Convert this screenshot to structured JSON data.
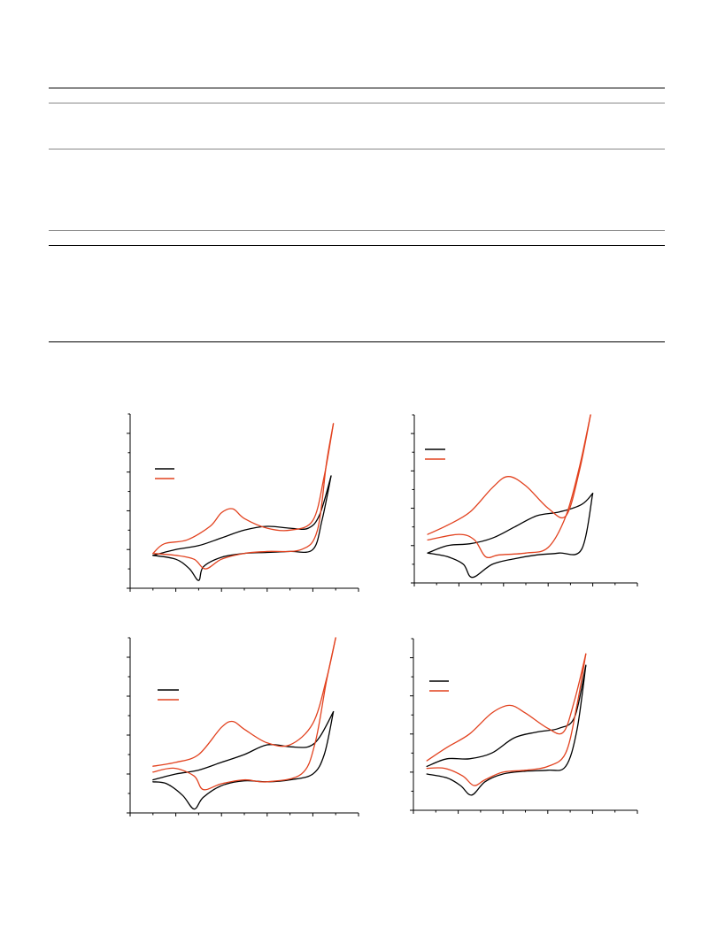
{
  "page": {
    "tables": [
      {
        "name": "table-1",
        "rules": [
          "top",
          "header",
          "bottom"
        ]
      },
      {
        "name": "table-2",
        "rules": [
          "top",
          "header",
          "bottom"
        ]
      }
    ]
  },
  "chart_data": [
    {
      "type": "line",
      "panel": "top-left",
      "title": "",
      "xlabel": "",
      "ylabel": "",
      "legend": {
        "placement": "top-left",
        "entries": [
          {
            "color": "#000000"
          },
          {
            "color": "#e2421f"
          }
        ]
      },
      "xlim": [
        0,
        10
      ],
      "ylim": [
        0,
        9
      ],
      "x_ticks": 10,
      "y_ticks": 9,
      "series": [
        {
          "color": "#000000",
          "forward": [
            [
              1,
              1.7
            ],
            [
              2,
              2.0
            ],
            [
              3,
              2.2
            ],
            [
              4,
              2.6
            ],
            [
              5,
              3.0
            ],
            [
              6,
              3.2
            ],
            [
              7,
              3.1
            ],
            [
              7.8,
              3.1
            ],
            [
              8.3,
              3.8
            ],
            [
              8.8,
              5.8
            ]
          ],
          "reverse": [
            [
              8.8,
              5.8
            ],
            [
              8.4,
              3.5
            ],
            [
              8,
              2.0
            ],
            [
              7,
              1.9
            ],
            [
              6,
              1.85
            ],
            [
              5,
              1.8
            ],
            [
              4,
              1.6
            ],
            [
              3.2,
              1.1
            ],
            [
              3,
              0.4
            ],
            [
              2.6,
              1.0
            ],
            [
              2,
              1.5
            ],
            [
              1,
              1.7
            ]
          ]
        },
        {
          "color": "#e2421f",
          "forward": [
            [
              1,
              1.8
            ],
            [
              1.5,
              2.3
            ],
            [
              2.5,
              2.5
            ],
            [
              3.5,
              3.2
            ],
            [
              4,
              3.9
            ],
            [
              4.5,
              4.1
            ],
            [
              5,
              3.6
            ],
            [
              6,
              3.1
            ],
            [
              7,
              3.0
            ],
            [
              8,
              3.5
            ],
            [
              8.5,
              5.8
            ],
            [
              8.9,
              8.5
            ]
          ],
          "reverse": [
            [
              8.9,
              8.5
            ],
            [
              8.6,
              6.5
            ],
            [
              8.2,
              3.0
            ],
            [
              7.5,
              2.0
            ],
            [
              6,
              1.9
            ],
            [
              5,
              1.8
            ],
            [
              4,
              1.5
            ],
            [
              3.3,
              1.0
            ],
            [
              2.8,
              1.5
            ],
            [
              2,
              1.7
            ],
            [
              1,
              1.8
            ]
          ]
        }
      ]
    },
    {
      "type": "line",
      "panel": "top-right",
      "title": "",
      "xlabel": "",
      "ylabel": "",
      "legend": {
        "placement": "top-left",
        "entries": [
          {
            "color": "#000000"
          },
          {
            "color": "#e2421f"
          }
        ]
      },
      "xlim": [
        0,
        10
      ],
      "ylim": [
        0,
        9
      ],
      "x_ticks": 10,
      "y_ticks": 9,
      "series": [
        {
          "color": "#000000",
          "forward": [
            [
              0.6,
              1.6
            ],
            [
              1.5,
              2.0
            ],
            [
              2.5,
              2.1
            ],
            [
              3.5,
              2.4
            ],
            [
              4.5,
              3.0
            ],
            [
              5.5,
              3.6
            ],
            [
              6.5,
              3.8
            ],
            [
              7.5,
              4.2
            ],
            [
              8,
              4.8
            ]
          ],
          "reverse": [
            [
              8,
              4.8
            ],
            [
              7.5,
              1.8
            ],
            [
              6.5,
              1.6
            ],
            [
              5.5,
              1.5
            ],
            [
              4.5,
              1.3
            ],
            [
              3.5,
              1.0
            ],
            [
              2.6,
              0.3
            ],
            [
              2.2,
              1.0
            ],
            [
              1.5,
              1.4
            ],
            [
              0.6,
              1.6
            ]
          ]
        },
        {
          "color": "#e2421f",
          "forward": [
            [
              0.6,
              2.6
            ],
            [
              1.5,
              3.1
            ],
            [
              2.5,
              3.8
            ],
            [
              3.5,
              5.1
            ],
            [
              4.2,
              5.7
            ],
            [
              5,
              5.2
            ],
            [
              6,
              4.0
            ],
            [
              6.8,
              3.6
            ],
            [
              7.4,
              6.0
            ],
            [
              7.9,
              9.0
            ]
          ],
          "reverse": [
            [
              7.9,
              9.0
            ],
            [
              7.4,
              6.2
            ],
            [
              6.8,
              3.6
            ],
            [
              6,
              1.9
            ],
            [
              5,
              1.6
            ],
            [
              3.8,
              1.5
            ],
            [
              3.2,
              1.4
            ],
            [
              2.7,
              2.3
            ],
            [
              2,
              2.6
            ],
            [
              0.6,
              2.3
            ]
          ]
        }
      ]
    },
    {
      "type": "line",
      "panel": "bottom-left",
      "title": "",
      "xlabel": "",
      "ylabel": "",
      "legend": {
        "placement": "top-left",
        "entries": [
          {
            "color": "#000000"
          },
          {
            "color": "#e2421f"
          }
        ]
      },
      "xlim": [
        0,
        10
      ],
      "ylim": [
        0,
        9
      ],
      "x_ticks": 10,
      "y_ticks": 9,
      "series": [
        {
          "color": "#000000",
          "forward": [
            [
              1,
              1.7
            ],
            [
              2,
              2.0
            ],
            [
              3,
              2.2
            ],
            [
              4,
              2.6
            ],
            [
              5,
              3.0
            ],
            [
              6,
              3.5
            ],
            [
              7,
              3.4
            ],
            [
              7.8,
              3.4
            ],
            [
              8.3,
              3.9
            ],
            [
              8.9,
              5.2
            ]
          ],
          "reverse": [
            [
              8.9,
              5.2
            ],
            [
              8.5,
              3.0
            ],
            [
              8,
              2.0
            ],
            [
              7,
              1.7
            ],
            [
              6,
              1.6
            ],
            [
              5,
              1.65
            ],
            [
              4,
              1.4
            ],
            [
              3.2,
              0.8
            ],
            [
              2.8,
              0.2
            ],
            [
              2.3,
              0.9
            ],
            [
              1.6,
              1.5
            ],
            [
              1,
              1.6
            ]
          ]
        },
        {
          "color": "#e2421f",
          "forward": [
            [
              1,
              2.4
            ],
            [
              2,
              2.6
            ],
            [
              3,
              3.0
            ],
            [
              4,
              4.4
            ],
            [
              4.5,
              4.7
            ],
            [
              5,
              4.3
            ],
            [
              6,
              3.6
            ],
            [
              7,
              3.5
            ],
            [
              8,
              4.6
            ],
            [
              8.6,
              6.9
            ],
            [
              9,
              9.0
            ]
          ],
          "reverse": [
            [
              9,
              9.0
            ],
            [
              8.6,
              6.8
            ],
            [
              8.1,
              3.6
            ],
            [
              7.5,
              2.0
            ],
            [
              6,
              1.6
            ],
            [
              5,
              1.7
            ],
            [
              4,
              1.5
            ],
            [
              3.2,
              1.2
            ],
            [
              2.8,
              1.9
            ],
            [
              1.9,
              2.3
            ],
            [
              1,
              2.1
            ]
          ]
        }
      ]
    },
    {
      "type": "line",
      "panel": "bottom-right",
      "title": "",
      "xlabel": "",
      "ylabel": "",
      "legend": {
        "placement": "top-left",
        "entries": [
          {
            "color": "#000000"
          },
          {
            "color": "#e2421f"
          }
        ]
      },
      "xlim": [
        0,
        10
      ],
      "ylim": [
        0,
        9
      ],
      "x_ticks": 10,
      "y_ticks": 9,
      "series": [
        {
          "color": "#000000",
          "forward": [
            [
              0.6,
              2.3
            ],
            [
              1.5,
              2.7
            ],
            [
              2.5,
              2.7
            ],
            [
              3.5,
              3.0
            ],
            [
              4.5,
              3.8
            ],
            [
              5.5,
              4.1
            ],
            [
              6.5,
              4.3
            ],
            [
              7.2,
              4.9
            ],
            [
              7.7,
              7.6
            ]
          ],
          "reverse": [
            [
              7.7,
              7.6
            ],
            [
              7.3,
              4.2
            ],
            [
              6.8,
              2.3
            ],
            [
              6,
              2.1
            ],
            [
              5,
              2.05
            ],
            [
              4,
              1.9
            ],
            [
              3.2,
              1.5
            ],
            [
              2.6,
              0.8
            ],
            [
              2.1,
              1.3
            ],
            [
              1.5,
              1.7
            ],
            [
              0.6,
              1.9
            ]
          ]
        },
        {
          "color": "#e2421f",
          "forward": [
            [
              0.6,
              2.6
            ],
            [
              1.5,
              3.3
            ],
            [
              2.5,
              4.0
            ],
            [
              3.5,
              5.1
            ],
            [
              4.3,
              5.5
            ],
            [
              5,
              5.1
            ],
            [
              6,
              4.3
            ],
            [
              6.7,
              4.1
            ],
            [
              7.2,
              5.8
            ],
            [
              7.7,
              8.2
            ]
          ],
          "reverse": [
            [
              7.7,
              8.2
            ],
            [
              7.3,
              5.5
            ],
            [
              6.8,
              3.0
            ],
            [
              6,
              2.3
            ],
            [
              5,
              2.1
            ],
            [
              4,
              2.0
            ],
            [
              3.2,
              1.6
            ],
            [
              2.7,
              1.3
            ],
            [
              2.2,
              1.8
            ],
            [
              1.4,
              2.2
            ],
            [
              0.6,
              2.2
            ]
          ]
        }
      ]
    }
  ]
}
